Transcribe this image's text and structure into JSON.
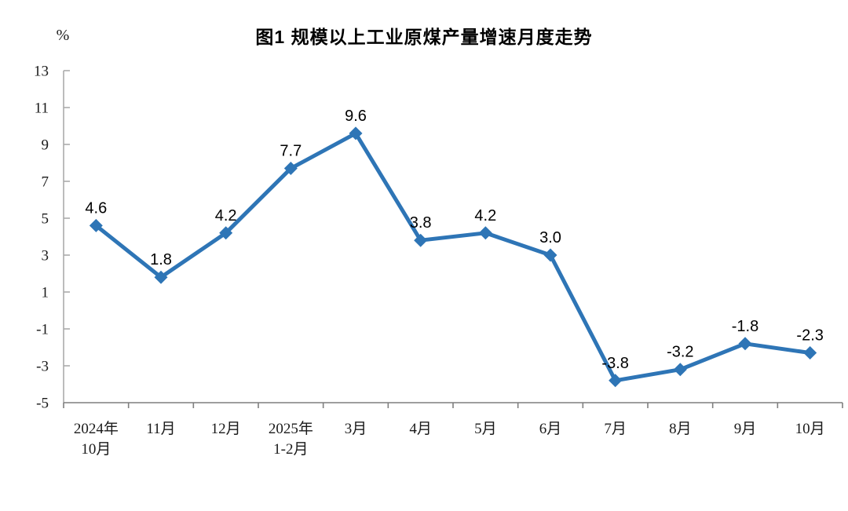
{
  "figure": {
    "title": "图1  规模以上工业原煤产量增速月度走势",
    "unit_label": "%"
  },
  "chart_data": {
    "type": "line",
    "title": "图1  规模以上工业原煤产量增速月度走势",
    "ylabel": "%",
    "xlabel": "",
    "categories": [
      "2024年10月",
      "11月",
      "12月",
      "2025年1-2月",
      "3月",
      "4月",
      "5月",
      "6月",
      "7月",
      "8月",
      "9月",
      "10月"
    ],
    "category_lines": [
      [
        "2024年",
        "10月"
      ],
      [
        "11月"
      ],
      [
        "12月"
      ],
      [
        "2025年",
        "1-2月"
      ],
      [
        "3月"
      ],
      [
        "4月"
      ],
      [
        "5月"
      ],
      [
        "6月"
      ],
      [
        "7月"
      ],
      [
        "8月"
      ],
      [
        "9月"
      ],
      [
        "10月"
      ]
    ],
    "series": [
      {
        "values": [
          4.6,
          1.8,
          4.2,
          7.7,
          9.6,
          3.8,
          4.2,
          3.0,
          -3.8,
          -3.2,
          -1.8,
          -2.3
        ],
        "point_labels": [
          "4.6",
          "1.8",
          "4.2",
          "7.7",
          "9.6",
          "3.8",
          "4.2",
          "3.0",
          "-3.8",
          "-3.2",
          "-1.8",
          "-2.3"
        ]
      }
    ],
    "ylim": [
      -5,
      13
    ],
    "ytick_step": 2,
    "ytick_labels": [
      "-5",
      "-3",
      "-1",
      "1",
      "3",
      "5",
      "7",
      "9",
      "11",
      "13"
    ],
    "grid": false,
    "legend_position": "none",
    "colors": {
      "line": "#2E75B6",
      "marker": "#2E75B6",
      "y_axis": "#ABABAB",
      "x_axis": "#7F7F7F",
      "tick_text": "#1a1a1a",
      "label_text": "#000000"
    }
  }
}
